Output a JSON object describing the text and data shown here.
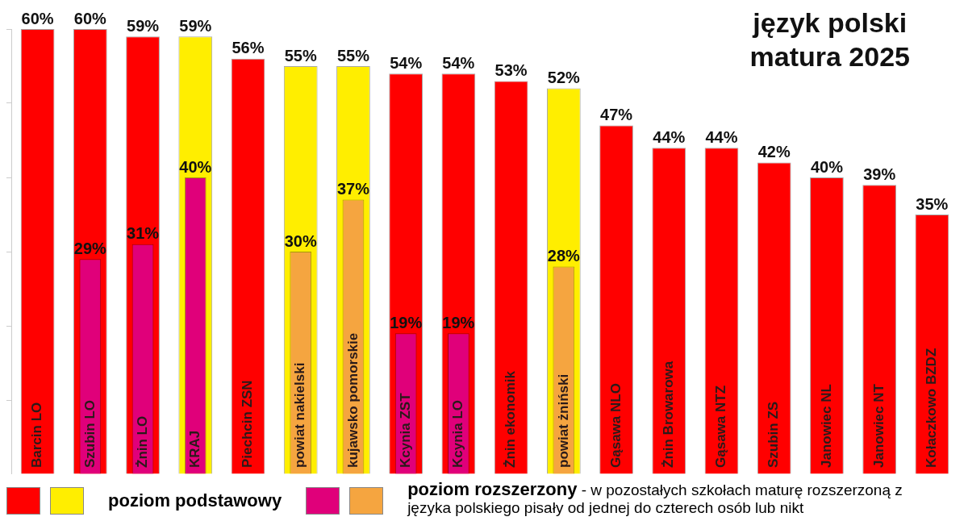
{
  "chart_data": {
    "type": "bar",
    "title": "język polski\nmatura 2025",
    "categories": [
      "Barcin LO",
      "Szubin LO",
      "Żnin LO",
      "KRAJ",
      "Piechcin ZSN",
      "powiat nakielski",
      "kujawsko pomorskie",
      "Kcynia ZST",
      "Kcynia LO",
      "Żnin ekonomik",
      "powiat żniński",
      "Gąsawa NLO",
      "Żnin Browarowa",
      "Gąsawa NTZ",
      "Szubin ZS",
      "Janowiec NL",
      "Janowiec NT",
      "Kołaczkowo BZDZ"
    ],
    "series": [
      {
        "name": "poziom podstawowy",
        "values": [
          60,
          60,
          59,
          59,
          56,
          55,
          55,
          54,
          54,
          53,
          52,
          47,
          44,
          44,
          42,
          40,
          39,
          35
        ],
        "colors": [
          "#ff0000",
          "#ff0000",
          "#ff0000",
          "#ffee00",
          "#ff0000",
          "#ffee00",
          "#ffee00",
          "#ff0000",
          "#ff0000",
          "#ff0000",
          "#ffee00",
          "#ff0000",
          "#ff0000",
          "#ff0000",
          "#ff0000",
          "#ff0000",
          "#ff0000",
          "#ff0000"
        ],
        "value_labels": [
          "60%",
          "60%",
          "59%",
          "59%",
          "56%",
          "55%",
          "55%",
          "54%",
          "54%",
          "53%",
          "52%",
          "47%",
          "44%",
          "44%",
          "42%",
          "40%",
          "39%",
          "35%"
        ]
      },
      {
        "name": "poziom rozszerzony",
        "values": [
          null,
          29,
          31,
          40,
          null,
          30,
          37,
          19,
          19,
          null,
          28,
          null,
          null,
          null,
          null,
          null,
          null,
          null
        ],
        "colors": [
          "#e0007a",
          "#e0007a",
          "#e0007a",
          "#e0007a",
          "#e0007a",
          "#f5a540",
          "#f5a540",
          "#e0007a",
          "#e0007a",
          "#e0007a",
          "#f5a540",
          "#e0007a",
          "#e0007a",
          "#e0007a",
          "#e0007a",
          "#e0007a",
          "#e0007a",
          "#e0007a"
        ],
        "value_labels": [
          null,
          "29%",
          "31%",
          "40%",
          null,
          "30%",
          "37%",
          "19%",
          "19%",
          null,
          "28%",
          null,
          null,
          null,
          null,
          null,
          null,
          null
        ]
      }
    ],
    "ylim": [
      0,
      60
    ],
    "yticks": [
      {
        "value": 0,
        "label": null
      },
      {
        "value": 10,
        "label": null
      },
      {
        "value": 20,
        "label": null
      },
      {
        "value": 30,
        "label": null
      },
      {
        "value": 40,
        "label": null
      },
      {
        "value": 50,
        "label": null
      },
      {
        "value": 60,
        "label": null
      }
    ],
    "tick_labels": "x",
    "grid": false,
    "legend": "bottom",
    "annotations": [
      "- w pozostałych szkołach maturę rozszerzoną z języka polskiego pisały od jednej do czterech osób lub nikt"
    ]
  }
}
